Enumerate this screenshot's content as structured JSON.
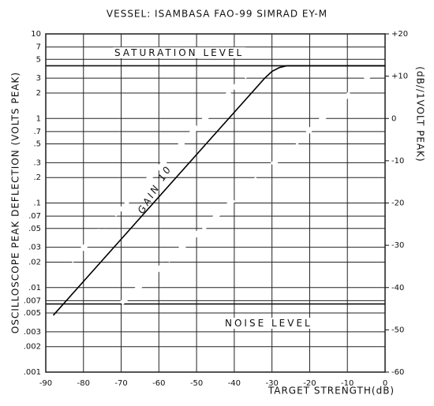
{
  "chart_data": {
    "type": "line",
    "title": "VESSEL: ISAMBASA FAO-99 SIMRAD EY-M",
    "xlabel": "TARGET STRENGTH(dB)",
    "ylabel": "OSCILLOSCOPE PEAK DEFLECTION (VOLTS PEAK)",
    "y2label": "(dB//1VOLT PEAK)",
    "xlim": [
      -90,
      0
    ],
    "xticks": [
      -90,
      -80,
      -70,
      -60,
      -50,
      -40,
      -30,
      -20,
      -10,
      0
    ],
    "ylog": true,
    "ylim": [
      0.001,
      10
    ],
    "yticks": [
      10,
      7,
      5,
      3,
      2,
      1,
      {
        "value": 0.7,
        "label": ".7"
      },
      {
        "value": 0.5,
        "label": ".5"
      },
      {
        "value": 0.3,
        "label": ".3"
      },
      {
        "value": 0.2,
        "label": ".2"
      },
      {
        "value": 0.1,
        "label": ".1"
      },
      {
        "value": 0.07,
        "label": ".07"
      },
      {
        "value": 0.05,
        "label": ".05"
      },
      {
        "value": 0.03,
        "label": ".03"
      },
      {
        "value": 0.02,
        "label": ".02"
      },
      {
        "value": 0.01,
        "label": ".01"
      },
      {
        "value": 0.007,
        "label": ".007"
      },
      {
        "value": 0.005,
        "label": ".005"
      },
      {
        "value": 0.003,
        "label": ".003"
      },
      {
        "value": 0.002,
        "label": ".002"
      },
      {
        "value": 0.001,
        "label": ".001"
      }
    ],
    "y2lim": [
      -60,
      20
    ],
    "y2ticks": [
      {
        "value": 20,
        "label": "+20"
      },
      {
        "value": 10,
        "label": "+10"
      },
      0,
      -10,
      -20,
      -30,
      -40,
      -50,
      -60
    ],
    "grid": true,
    "series": [
      {
        "color": "#000000",
        "x": [
          -88,
          -32,
          -30,
          -28,
          -26,
          0
        ],
        "values": [
          0.0047,
          2.97,
          3.6,
          4.0,
          4.2,
          4.2
        ]
      },
      {
        "color": "#ffffff",
        "dash": true,
        "x": [
          -89,
          -35
        ],
        "values": [
          0.011,
          4.0
        ]
      },
      {
        "color": "#ffffff",
        "dash": true,
        "x": [
          -70,
          -3
        ],
        "values": [
          0.0065,
          3.6
        ]
      }
    ],
    "hlines": [
      {
        "label": "SATURATION LEVEL",
        "value": 4.2
      },
      {
        "label": "NOISE LEVEL",
        "value": 0.0064
      }
    ],
    "annotation": "GAIN 10"
  }
}
